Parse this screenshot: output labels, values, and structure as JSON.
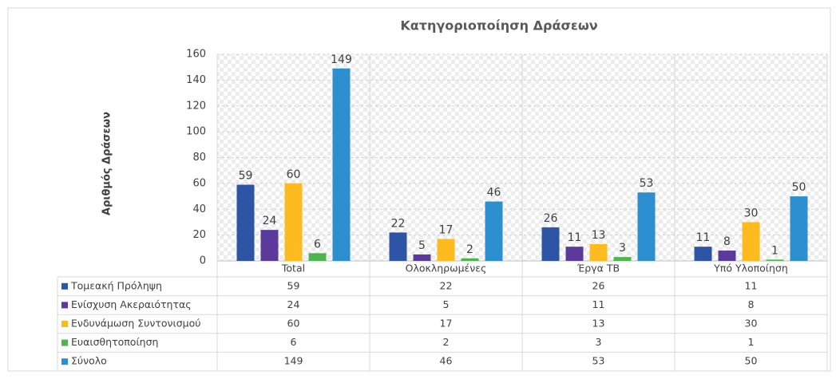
{
  "chart_data": {
    "type": "bar",
    "title": "Κατηγοριοποίηση Δράσεων",
    "y_label": "Αριθμός Δράσεων",
    "categories": [
      "Total",
      "Ολοκληρωμένες",
      "Έργα ΤΒ",
      "Υπό Υλοποίηση"
    ],
    "series": [
      {
        "name": "Τομεακή Πρόληψη",
        "color": "#2e55a5",
        "values": [
          59,
          22,
          26,
          11
        ]
      },
      {
        "name": "Ενίσχυση Ακεραιότητας",
        "color": "#5b3a9c",
        "values": [
          24,
          5,
          11,
          8
        ]
      },
      {
        "name": "Ενδυνάμωση Συντονισμού",
        "color": "#fdbb1f",
        "values": [
          60,
          17,
          13,
          30
        ]
      },
      {
        "name": "Ευαισθητοποίηση",
        "color": "#4cb64c",
        "values": [
          6,
          2,
          3,
          1
        ]
      },
      {
        "name": "Σύνολο",
        "color": "#2e8fd0",
        "values": [
          149,
          46,
          53,
          50
        ]
      }
    ],
    "ylim": [
      0,
      160
    ],
    "yticks": [
      0,
      20,
      40,
      60,
      80,
      100,
      120,
      140,
      160
    ],
    "grid": true
  }
}
